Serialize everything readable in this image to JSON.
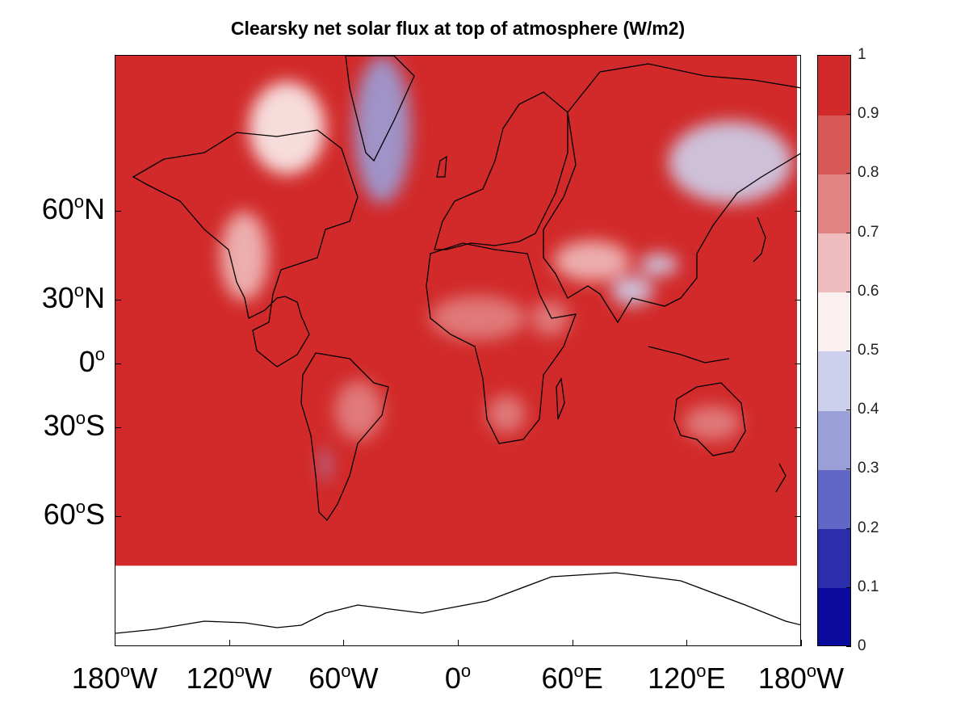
{
  "chart_data": {
    "type": "heatmap",
    "title": "Clearsky net solar flux at top of atmosphere (W/m2)",
    "projection": "Mercator",
    "lon_range": [
      -180,
      180
    ],
    "lat_range": [
      -80,
      82
    ],
    "data_lat_range": [
      -70,
      82
    ],
    "background_value": 0.95,
    "x_ticks": [
      {
        "value": -180,
        "deg": "180",
        "dir": "W"
      },
      {
        "value": -120,
        "deg": "120",
        "dir": "W"
      },
      {
        "value": -60,
        "deg": "60",
        "dir": "W"
      },
      {
        "value": 0,
        "deg": "0",
        "dir": ""
      },
      {
        "value": 60,
        "deg": "60",
        "dir": "E"
      },
      {
        "value": 120,
        "deg": "120",
        "dir": "E"
      },
      {
        "value": 180,
        "deg": "180",
        "dir": "W"
      }
    ],
    "y_ticks": [
      {
        "value": 60,
        "deg": "60",
        "dir": "N"
      },
      {
        "value": 30,
        "deg": "30",
        "dir": "N"
      },
      {
        "value": 0,
        "deg": "0",
        "dir": ""
      },
      {
        "value": -30,
        "deg": "30",
        "dir": "S"
      },
      {
        "value": -60,
        "deg": "60",
        "dir": "S"
      }
    ],
    "colorbar": {
      "levels": [
        0,
        0.1,
        0.2,
        0.3,
        0.4,
        0.5,
        0.6,
        0.7,
        0.8,
        0.9,
        1
      ],
      "labels": [
        "0",
        "0.1",
        "0.2",
        "0.3",
        "0.4",
        "0.5",
        "0.6",
        "0.7",
        "0.8",
        "0.9",
        "1"
      ],
      "colors": [
        "#0a0a9c",
        "#2a2eab",
        "#5f66c4",
        "#9a9fd8",
        "#cdd0ec",
        "#fbf0f0",
        "#efbcbd",
        "#e18283",
        "#d85757",
        "#d22a2a"
      ]
    },
    "regions": [
      {
        "name": "greenland",
        "value": 0.3,
        "lon": [
          -55,
          -25
        ],
        "lat": [
          62,
          82
        ]
      },
      {
        "name": "canadian-arctic",
        "value": 0.5,
        "lon": [
          -110,
          -70
        ],
        "lat": [
          68,
          80
        ]
      },
      {
        "name": "siberia-north",
        "value": 0.45,
        "lon": [
          110,
          175
        ],
        "lat": [
          62,
          76
        ]
      },
      {
        "name": "north-america-rockies",
        "value": 0.65,
        "lon": [
          -125,
          -100
        ],
        "lat": [
          30,
          60
        ]
      },
      {
        "name": "sahara",
        "value": 0.75,
        "lon": [
          -15,
          35
        ],
        "lat": [
          12,
          32
        ]
      },
      {
        "name": "arabia",
        "value": 0.7,
        "lon": [
          38,
          58
        ],
        "lat": [
          14,
          30
        ]
      },
      {
        "name": "central-asia",
        "value": 0.6,
        "lon": [
          50,
          90
        ],
        "lat": [
          38,
          52
        ]
      },
      {
        "name": "tibet",
        "value": 0.45,
        "lon": [
          80,
          102
        ],
        "lat": [
          28,
          40
        ]
      },
      {
        "name": "mongolia",
        "value": 0.4,
        "lon": [
          95,
          115
        ],
        "lat": [
          40,
          48
        ]
      },
      {
        "name": "southern-africa",
        "value": 0.7,
        "lon": [
          15,
          35
        ],
        "lat": [
          -32,
          -15
        ]
      },
      {
        "name": "australia",
        "value": 0.7,
        "lon": [
          118,
          148
        ],
        "lat": [
          -35,
          -20
        ]
      },
      {
        "name": "andes-south",
        "value": 0.3,
        "lon": [
          -72,
          -68
        ],
        "lat": [
          -50,
          -38
        ]
      },
      {
        "name": "south-america-east",
        "value": 0.7,
        "lon": [
          -65,
          -40
        ],
        "lat": [
          -35,
          -8
        ]
      }
    ]
  }
}
